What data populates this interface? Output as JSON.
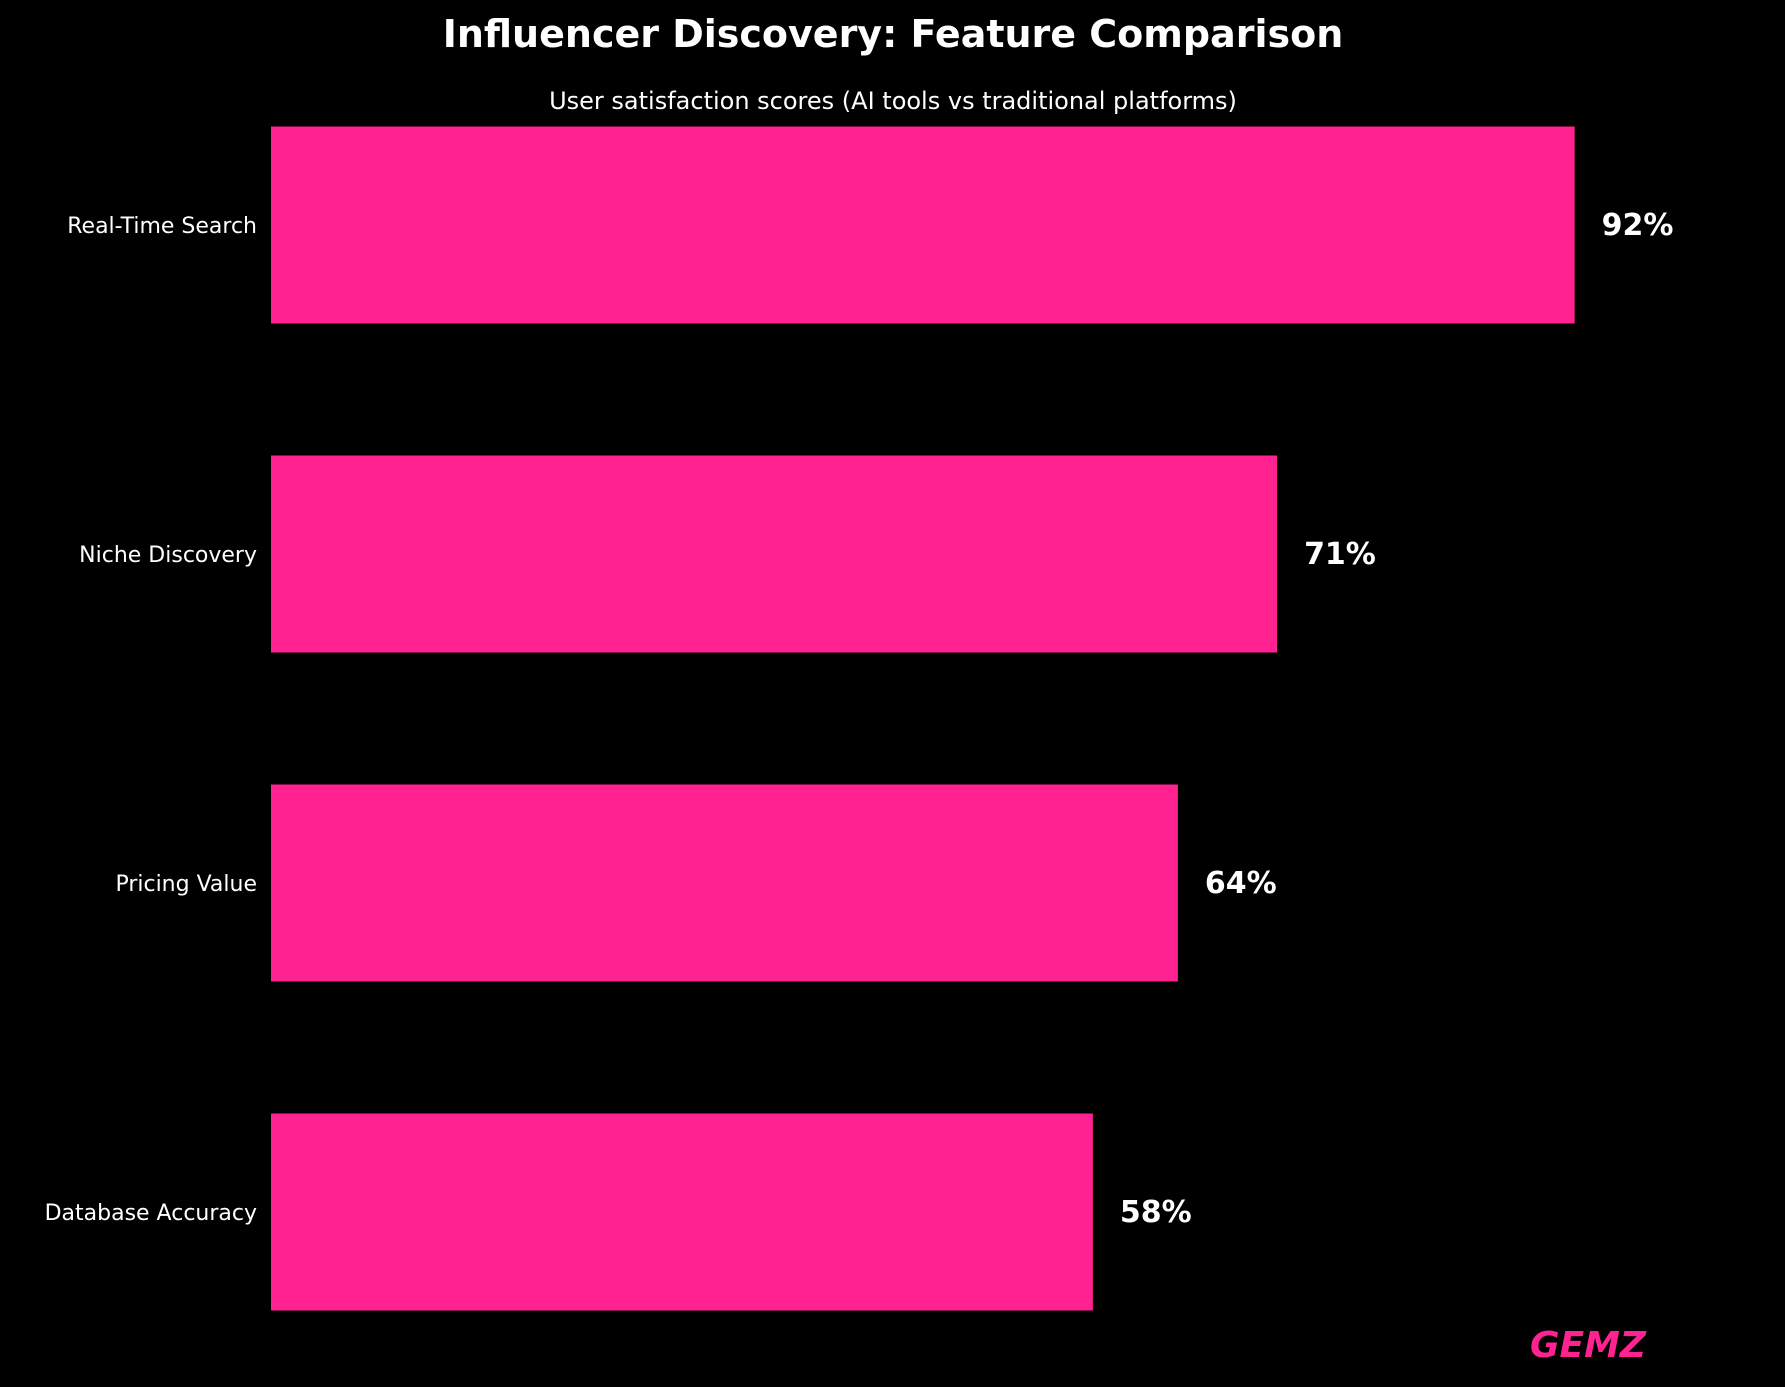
{
  "chart_data": {
    "type": "bar",
    "orientation": "horizontal",
    "title": "Influencer Discovery: Feature Comparison",
    "subtitle": "User satisfaction scores (AI tools vs traditional platforms)",
    "categories": [
      "Real-Time Search",
      "Niche Discovery",
      "Pricing Value",
      "Database Accuracy"
    ],
    "values": [
      92,
      71,
      64,
      58
    ],
    "value_labels": [
      "92%",
      "71%",
      "64%",
      "58%"
    ],
    "xlabel": "",
    "ylabel": "",
    "xlim": [
      0,
      100
    ],
    "grid": false,
    "bar_color": "#FF2290",
    "background": "#000000",
    "text_color": "#FFFFFF"
  },
  "watermark": "GEMZ"
}
